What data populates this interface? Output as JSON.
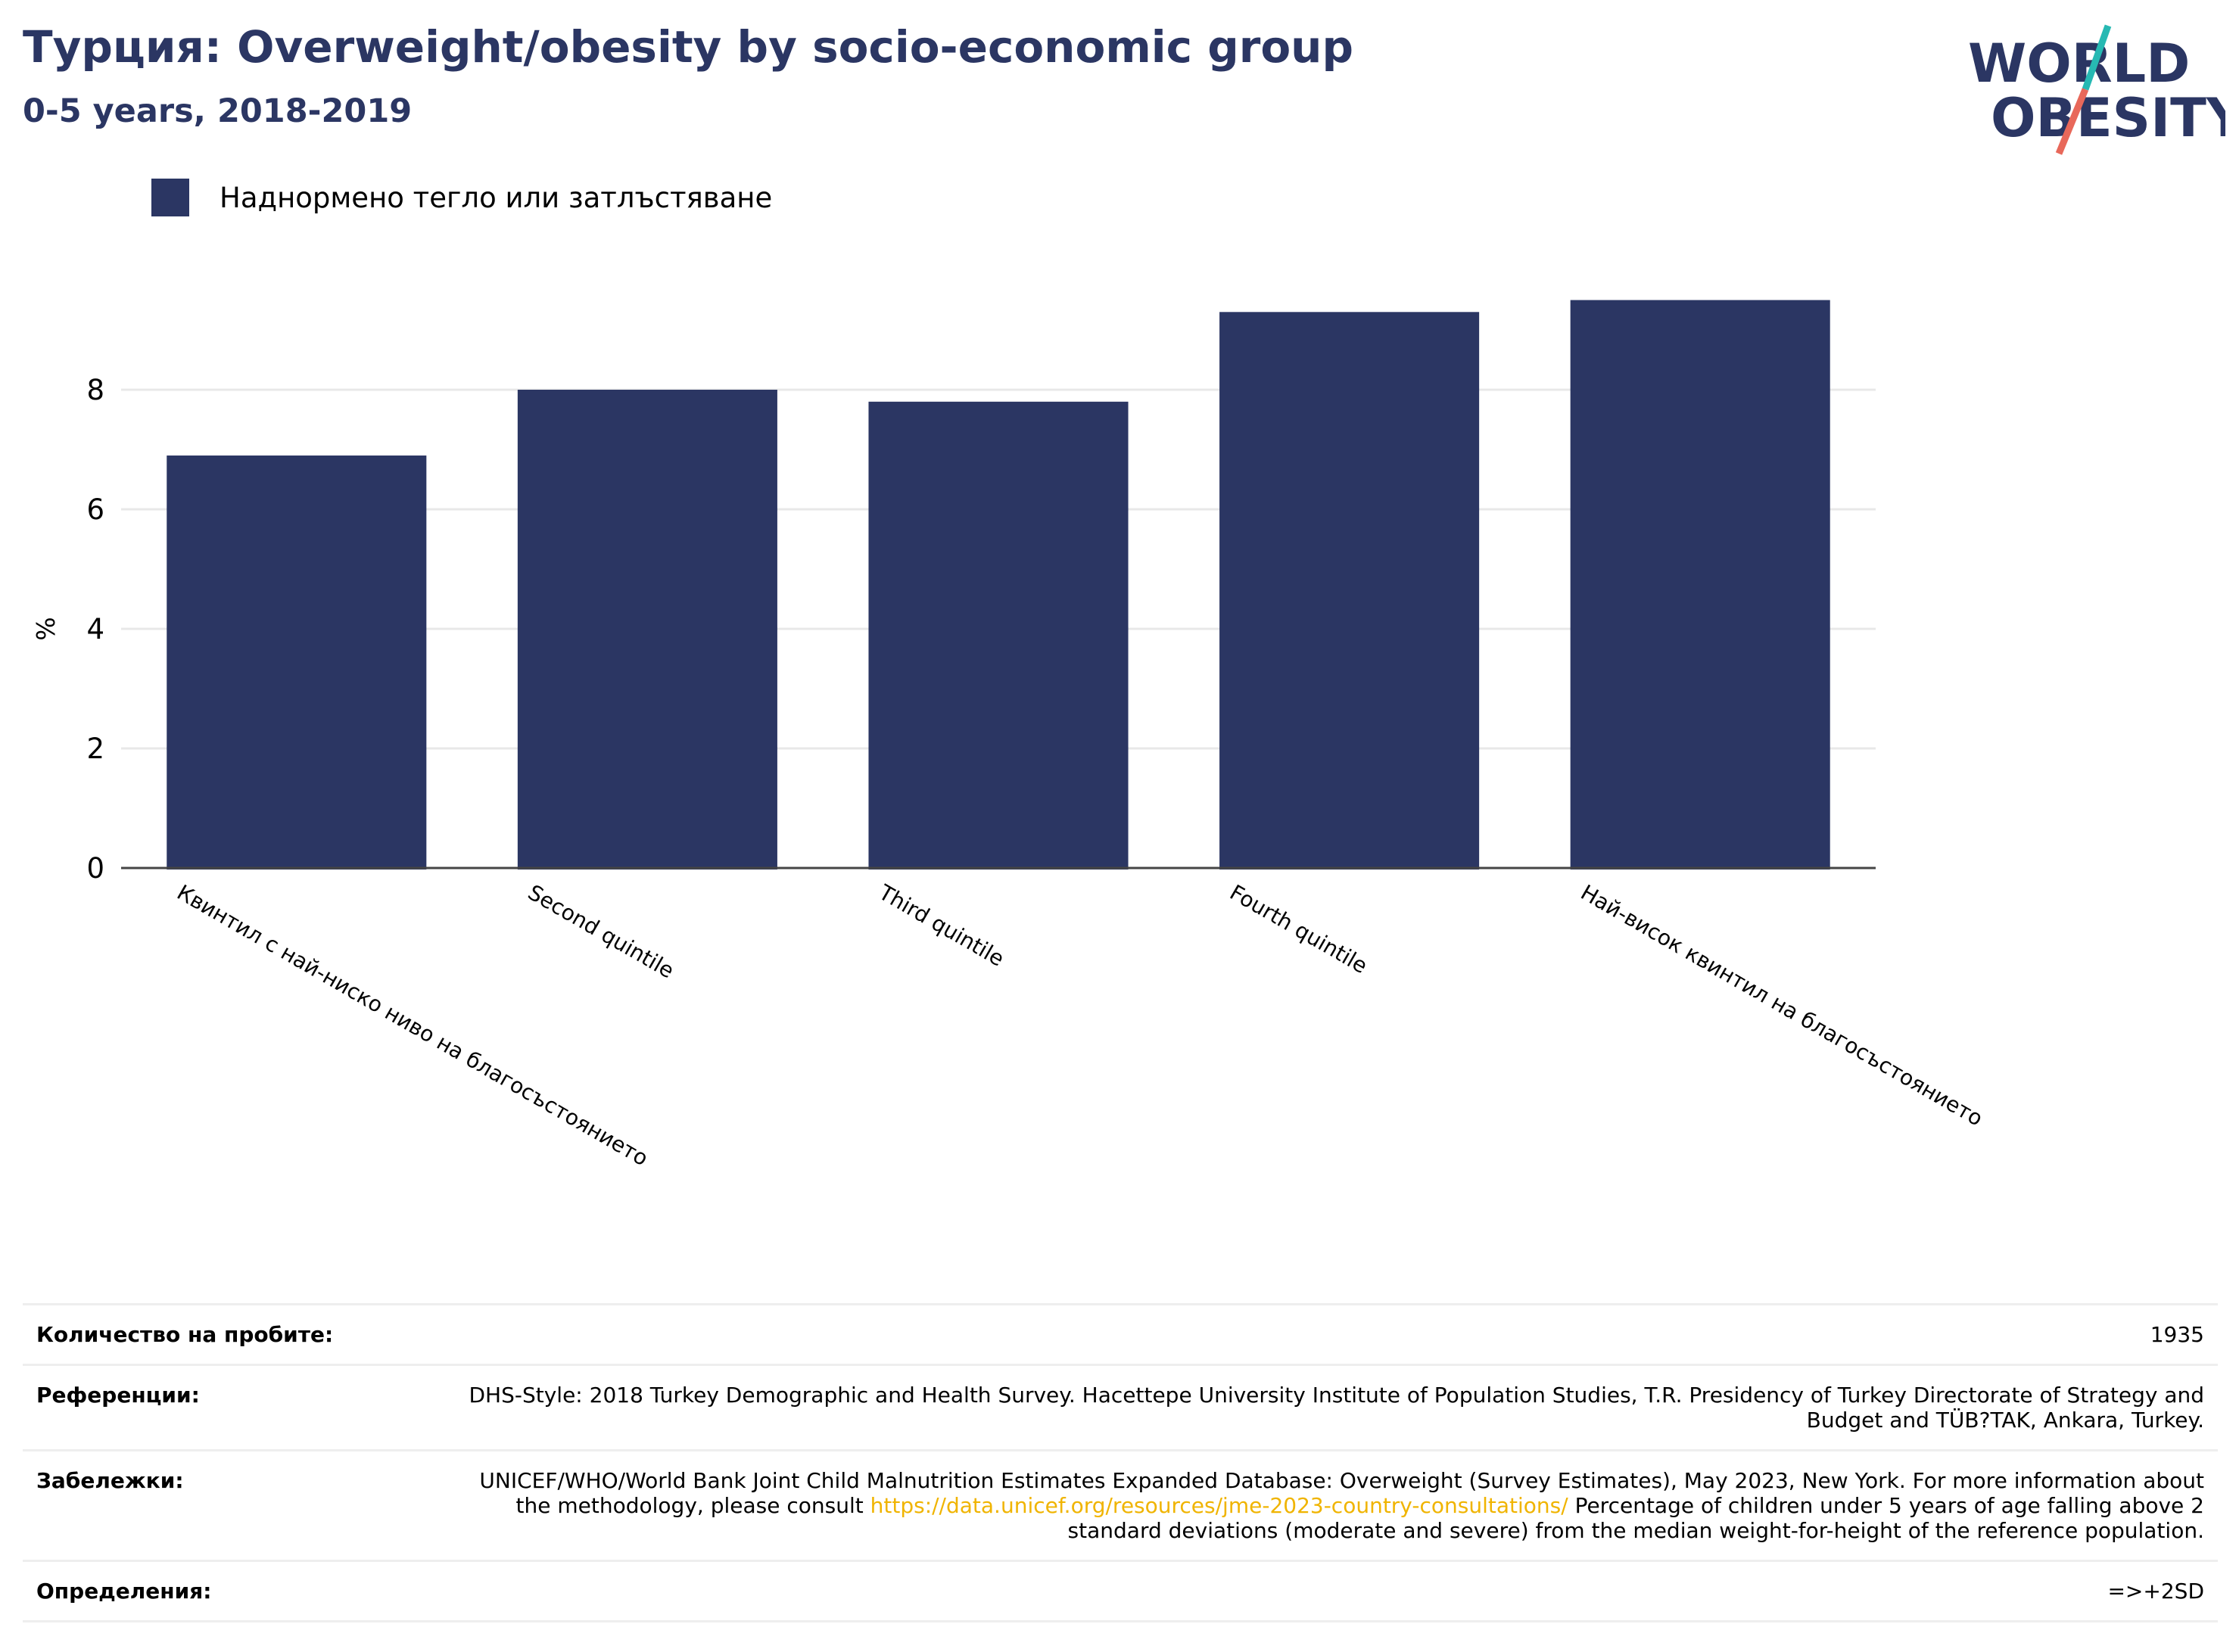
{
  "header": {
    "title": "Турция: Overweight/obesity by socio-economic group",
    "subtitle": "0-5 years, 2018-2019"
  },
  "logo": {
    "line1": "WORLD",
    "line2": "OBESITY"
  },
  "legend": {
    "label": "Наднормено тегло или затлъстяване"
  },
  "colors": {
    "bar": "#2b3663",
    "title": "#2b3663",
    "link": "#f0b400",
    "logo_teal": "#27b9b3",
    "logo_red": "#e8685a"
  },
  "chart_data": {
    "type": "bar",
    "categories": [
      "Квинтил с най-ниско ниво на благосъстоянието",
      "Second quintile",
      "Third quintile",
      "Fourth quintile",
      "Най-висок квинтил на благосъстоянието"
    ],
    "series": [
      {
        "name": "Наднормено тегло или затлъстяване",
        "values": [
          6.9,
          8.0,
          7.8,
          9.3,
          9.5
        ]
      }
    ],
    "ylabel": "%",
    "yticks": [
      0,
      2,
      4,
      6,
      8
    ],
    "ylim": [
      0,
      10.5
    ],
    "grid": true,
    "legend_position": "top-left"
  },
  "info_table": {
    "sample_label": "Количество на пробите:",
    "sample_value": "1935",
    "references_label": "Референции:",
    "references_value": "DHS-Style: 2018 Turkey Demographic and Health Survey. Hacettepe University Institute of Population Studies, T.R. Presidency of Turkey Directorate of Strategy and Budget and TÜB?TAK, Ankara, Turkey.",
    "notes_label": "Забележки:",
    "notes_before": "UNICEF/WHO/World Bank Joint Child Malnutrition Estimates Expanded Database: Overweight (Survey Estimates), May 2023, New York. For more information about the methodology, please consult ",
    "notes_link": "https://data.unicef.org/resources/jme-2023-country-consultations/",
    "notes_after": " Percentage of children under 5 years of age falling above 2 standard deviations (moderate and severe) from the median weight-for-height of the reference population.",
    "definitions_label": "Определения:",
    "definitions_value": "=>+2SD"
  }
}
